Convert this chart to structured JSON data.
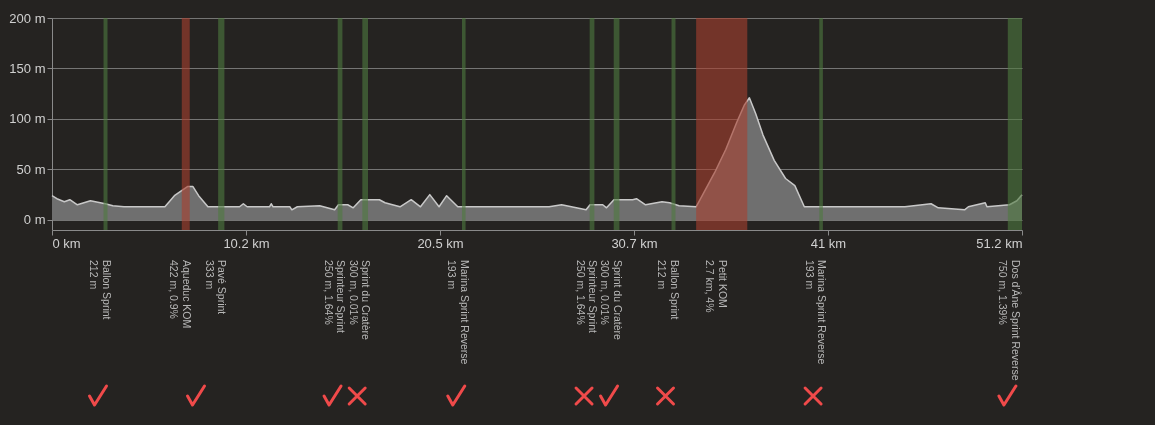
{
  "chart_data": {
    "type": "area",
    "x": [
      0,
      0.26,
      0.65,
      0.94,
      1.34,
      2.03,
      2.81,
      3.21,
      3.8,
      5.96,
      6.46,
      7.15,
      7.44,
      7.74,
      8.23,
      9.9,
      10.1,
      10.3,
      11.48,
      11.57,
      11.67,
      12.56,
      12.66,
      12.95,
      14.13,
      14.92,
      15.12,
      15.61,
      15.9,
      16.3,
      17.28,
      17.58,
      18.37,
      18.96,
      19.45,
      19.94,
      20.43,
      20.83,
      21.42,
      26.24,
      26.9,
      28.19,
      28.4,
      29.07,
      29.27,
      29.66,
      30.65,
      30.85,
      31.33,
      32.2,
      32.6,
      33.1,
      34.0,
      34.98,
      35.57,
      36.15,
      36.55,
      36.81,
      37.15,
      37.53,
      38.12,
      38.72,
      39.21,
      39.71,
      45.02,
      46.4,
      46.78,
      48.17,
      48.37,
      49.26,
      49.35,
      50.54,
      50.93,
      51.2
    ],
    "series": [
      {
        "color": "#6f6f6f",
        "values": [
          24,
          21,
          18,
          20,
          15,
          19,
          16,
          14,
          13,
          13,
          24,
          33,
          33,
          24,
          13,
          13,
          16,
          13,
          13,
          16,
          13,
          13,
          10,
          13,
          14,
          10,
          15,
          15,
          12,
          20,
          20,
          17,
          13,
          20,
          13,
          25,
          13,
          24,
          13,
          13,
          15,
          10,
          15,
          15,
          12,
          20,
          20,
          21,
          15,
          18,
          17,
          14,
          13,
          47,
          70,
          97,
          114,
          121,
          105,
          84,
          59,
          41,
          34,
          13,
          13,
          16,
          12,
          10,
          13,
          17,
          13,
          15,
          19,
          25
        ]
      }
    ],
    "xlim": [
      0,
      51.2
    ],
    "xticks": [
      {
        "value": 0,
        "label": "0 km"
      },
      {
        "value": 10.24,
        "label": "10.2 km"
      },
      {
        "value": 20.48,
        "label": "20.5 km"
      },
      {
        "value": 30.72,
        "label": "30.7 km"
      },
      {
        "value": 40.96,
        "label": "41 km"
      },
      {
        "value": 51.2,
        "label": "51.2 km"
      }
    ],
    "ylim": [
      -10,
      200
    ],
    "yticks": [
      {
        "value": 0,
        "label": "0 m"
      },
      {
        "value": 50,
        "label": "50 m"
      },
      {
        "value": 100,
        "label": "100 m"
      },
      {
        "value": 150,
        "label": "150 m"
      },
      {
        "value": 200,
        "label": "200 m"
      }
    ],
    "grid": "y",
    "bands": [
      {
        "axis": "x",
        "from": 2.72,
        "to": 2.93,
        "label": "Ballon Sprint\n212 m",
        "color": "#4e7a40"
      },
      {
        "axis": "x",
        "from": 6.85,
        "to": 7.27,
        "label": "Aqueduc KOM\n422 m, 0.9%",
        "color": "#a8402e"
      },
      {
        "axis": "x",
        "from": 8.77,
        "to": 9.1,
        "label": "Pavé Sprint\n333 m",
        "color": "#4e7a40"
      },
      {
        "axis": "x",
        "from": 15.08,
        "to": 15.33,
        "label": "Sprinteur Sprint\n250 m, 1.64%",
        "color": "#4e7a40"
      },
      {
        "axis": "x",
        "from": 16.38,
        "to": 16.68,
        "label": "Sprint du Cratère\n300 m, 0.01%",
        "color": "#4e7a40"
      },
      {
        "axis": "x",
        "from": 21.64,
        "to": 21.83,
        "label": "Marina Sprint Reverse\n193 m",
        "color": "#4e7a40"
      },
      {
        "axis": "x",
        "from": 28.38,
        "to": 28.63,
        "label": "Sprinteur Sprint\n250 m, 1.64%",
        "color": "#4e7a40"
      },
      {
        "axis": "x",
        "from": 29.65,
        "to": 29.95,
        "label": "Sprint du Cratère\n300 m, 0.01%",
        "color": "#4e7a40"
      },
      {
        "axis": "x",
        "from": 32.7,
        "to": 32.91,
        "label": "Ballon Sprint\n212 m",
        "color": "#4e7a40"
      },
      {
        "axis": "x",
        "from": 34.0,
        "to": 36.7,
        "label": "Petit KOM\n2.7 km, 4%",
        "color": "#a8402e"
      },
      {
        "axis": "x",
        "from": 40.5,
        "to": 40.69,
        "label": "Marina Sprint Reverse\n193 m",
        "color": "#4e7a40"
      },
      {
        "axis": "x",
        "from": 50.45,
        "to": 51.2,
        "label": "Dos d'Âne Sprint Reverse\n750 m, 1.39%",
        "color": "#4e7a40"
      }
    ]
  }
}
